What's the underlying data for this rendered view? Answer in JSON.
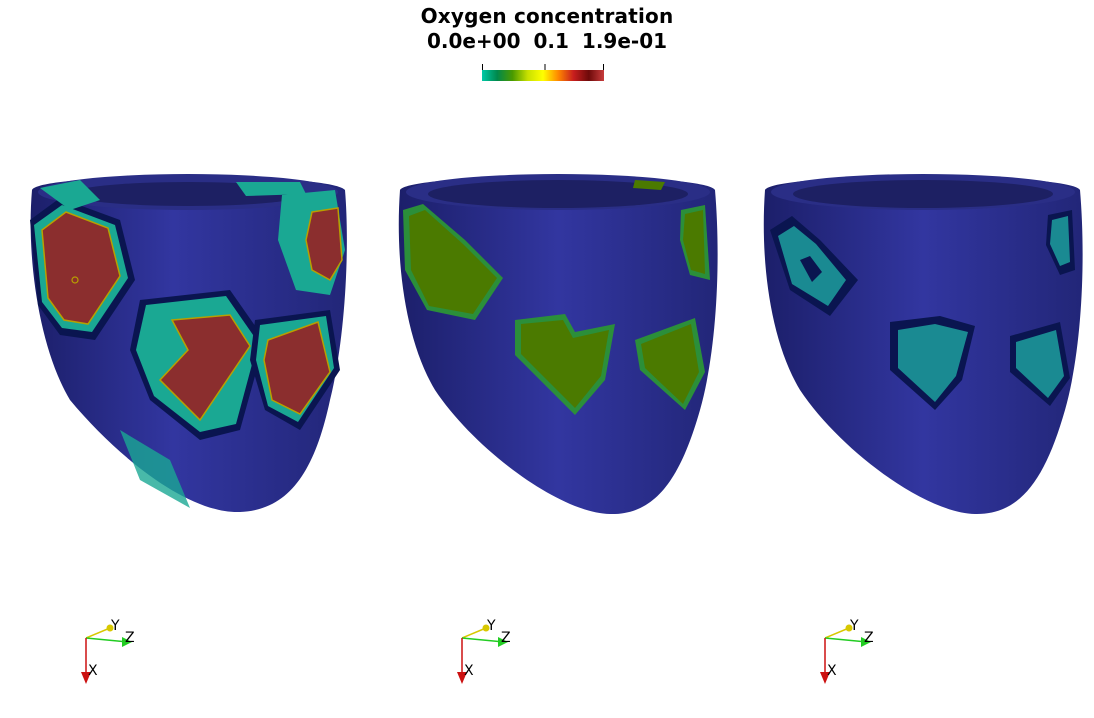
{
  "colorbar": {
    "title": "Oxygen concentration",
    "tick_min": "0.0e+00",
    "tick_mid": "0.1",
    "tick_max": "1.9e-01",
    "colormap": [
      "#00c9a7",
      "#00884b",
      "#4a9a00",
      "#c8e000",
      "#ffff00",
      "#ff8800",
      "#c81e1e",
      "#6e0a0a",
      "#c83c3c"
    ]
  },
  "viewports": [
    {
      "name": "left-ventricle-view-1",
      "patch_colors": {
        "core": "#8b2e2e",
        "ring": "#1aa893",
        "outline": "#0a1550"
      }
    },
    {
      "name": "left-ventricle-view-2",
      "patch_colors": {
        "core": "#4b7a00",
        "ring": "#2b8f3a",
        "outline": "#0a1550"
      }
    },
    {
      "name": "left-ventricle-view-3",
      "patch_colors": {
        "core": "#1a8a92",
        "ring": "#157a84",
        "outline": "#0a1550"
      }
    }
  ],
  "axes": {
    "x_label": "X",
    "y_label": "Y",
    "z_label": "Z",
    "x_color": "#cc1111",
    "y_color": "#d8c800",
    "z_color": "#22cc22"
  },
  "surface_color": "#2b2f8f"
}
